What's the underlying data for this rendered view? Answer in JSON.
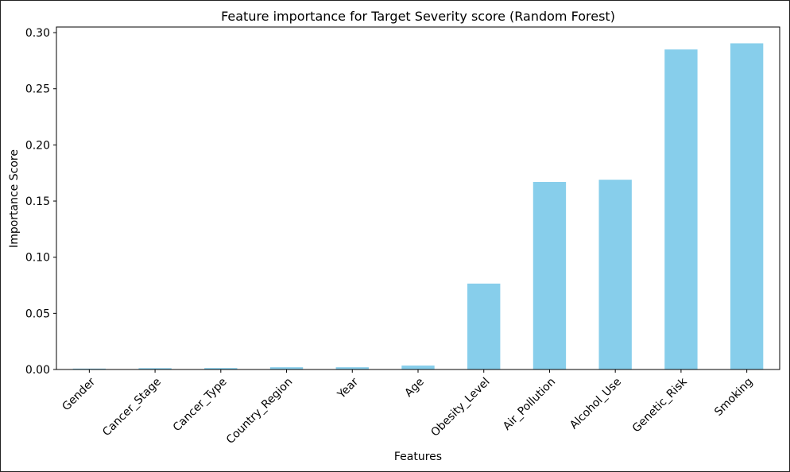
{
  "chart_data": {
    "type": "bar",
    "title": "Feature importance for Target Severity score (Random Forest)",
    "xlabel": "Features",
    "ylabel": "Importance Score",
    "categories": [
      "Gender",
      "Cancer_Stage",
      "Cancer_Type",
      "Country_Region",
      "Year",
      "Age",
      "Obesity_Level",
      "Air_Pollution",
      "Alcohol_Use",
      "Genetic_Risk",
      "Smoking"
    ],
    "values": [
      0.0008,
      0.0012,
      0.0013,
      0.002,
      0.002,
      0.0035,
      0.0765,
      0.167,
      0.169,
      0.285,
      0.2905
    ],
    "ylim": [
      0,
      0.305
    ],
    "yticks": [
      0.0,
      0.05,
      0.1,
      0.15,
      0.2,
      0.25,
      0.3
    ],
    "ytick_labels": [
      "0.00",
      "0.05",
      "0.10",
      "0.15",
      "0.20",
      "0.25",
      "0.30"
    ],
    "bar_color": "#87CEEB",
    "grid": false,
    "legend": "none"
  }
}
